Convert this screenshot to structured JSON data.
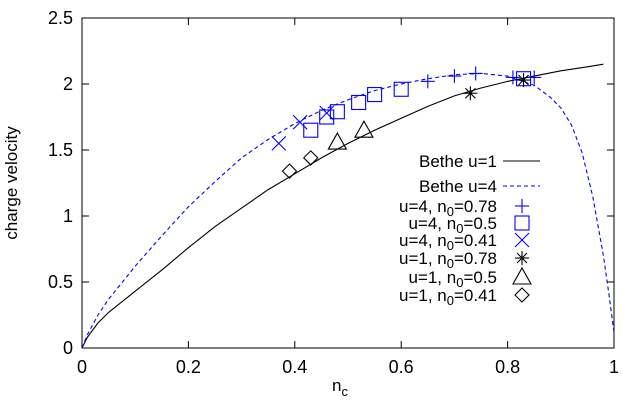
{
  "chart_data": {
    "type": "line",
    "xlabel": "n",
    "xlabel_sub": "c",
    "ylabel": "charge velocity",
    "xlim": [
      0,
      1
    ],
    "ylim": [
      0,
      2.5
    ],
    "xticks": [
      {
        "value": 0,
        "label": "0"
      },
      {
        "value": 0.2,
        "label": "0.2"
      },
      {
        "value": 0.4,
        "label": "0.4"
      },
      {
        "value": 0.6,
        "label": "0.6"
      },
      {
        "value": 0.8,
        "label": "0.8"
      },
      {
        "value": 1,
        "label": "1"
      }
    ],
    "yticks": [
      {
        "value": 0,
        "label": "0"
      },
      {
        "value": 0.5,
        "label": "0.5"
      },
      {
        "value": 1,
        "label": "1"
      },
      {
        "value": 1.5,
        "label": "1.5"
      },
      {
        "value": 2,
        "label": "2"
      },
      {
        "value": 2.5,
        "label": "2.5"
      }
    ],
    "grid": false,
    "legend_position": "right",
    "lines": [
      {
        "label": "Bethe u=1",
        "style": "solid",
        "color": "#000000",
        "x": [
          0,
          0.01,
          0.03,
          0.05,
          0.1,
          0.15,
          0.2,
          0.25,
          0.3,
          0.35,
          0.4,
          0.45,
          0.5,
          0.55,
          0.6,
          0.65,
          0.7,
          0.75,
          0.8,
          0.85,
          0.9,
          0.95,
          0.98
        ],
        "y": [
          0,
          0.08,
          0.19,
          0.27,
          0.43,
          0.59,
          0.76,
          0.92,
          1.06,
          1.2,
          1.32,
          1.44,
          1.55,
          1.65,
          1.74,
          1.83,
          1.91,
          1.97,
          2.02,
          2.06,
          2.1,
          2.13,
          2.15
        ]
      },
      {
        "label": "Bethe u=4",
        "style": "dashed",
        "color": "#0000ff",
        "x": [
          0,
          0.01,
          0.03,
          0.05,
          0.1,
          0.15,
          0.2,
          0.25,
          0.3,
          0.35,
          0.4,
          0.45,
          0.5,
          0.55,
          0.6,
          0.65,
          0.7,
          0.75,
          0.8,
          0.85,
          0.88,
          0.9,
          0.92,
          0.94,
          0.96,
          0.98,
          0.99,
          1.0
        ],
        "y": [
          0,
          0.1,
          0.25,
          0.37,
          0.62,
          0.85,
          1.07,
          1.26,
          1.44,
          1.58,
          1.7,
          1.8,
          1.88,
          1.95,
          2.0,
          2.04,
          2.07,
          2.08,
          2.06,
          1.99,
          1.9,
          1.82,
          1.69,
          1.48,
          1.15,
          0.7,
          0.42,
          0.12
        ]
      }
    ],
    "scatter": [
      {
        "label": "u=4, n",
        "label_sub": "0",
        "label_value": "=0.78",
        "marker": "plus",
        "color": "#0000ff",
        "x": [
          0.65,
          0.7,
          0.74,
          0.81,
          0.85
        ],
        "y": [
          2.02,
          2.06,
          2.08,
          2.05,
          2.05
        ]
      },
      {
        "label": "u=4, n",
        "label_sub": "0",
        "label_value": "=0.5",
        "marker": "square",
        "color": "#0000ff",
        "x": [
          0.43,
          0.46,
          0.48,
          0.52,
          0.55,
          0.6,
          0.83
        ],
        "y": [
          1.65,
          1.75,
          1.79,
          1.86,
          1.92,
          1.96,
          2.04
        ]
      },
      {
        "label": "u=4, n",
        "label_sub": "0",
        "label_value": "=0.41",
        "marker": "x",
        "color": "#0000ff",
        "x": [
          0.37,
          0.41,
          0.46
        ],
        "y": [
          1.55,
          1.71,
          1.78
        ]
      },
      {
        "label": "u=1, n",
        "label_sub": "0",
        "label_value": "=0.78",
        "marker": "star",
        "color": "#000000",
        "x": [
          0.73,
          0.83
        ],
        "y": [
          1.93,
          2.03
        ]
      },
      {
        "label": "u=1, n",
        "label_sub": "0",
        "label_value": "=0.5",
        "marker": "triangle",
        "color": "#000000",
        "x": [
          0.48,
          0.53
        ],
        "y": [
          1.56,
          1.65
        ]
      },
      {
        "label": "u=1, n",
        "label_sub": "0",
        "label_value": "=0.41",
        "marker": "diamond",
        "color": "#000000",
        "x": [
          0.39,
          0.43
        ],
        "y": [
          1.34,
          1.44
        ]
      }
    ]
  }
}
